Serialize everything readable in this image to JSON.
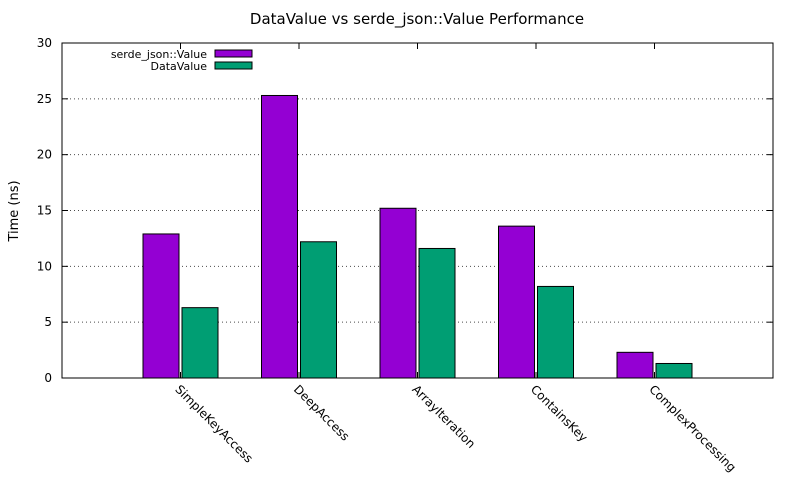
{
  "chart_data": {
    "type": "bar",
    "title": "DataValue vs serde_json::Value Performance",
    "xlabel": "",
    "ylabel": "Time (ns)",
    "ylim": [
      0,
      30
    ],
    "yticks": [
      0,
      5,
      10,
      15,
      20,
      25,
      30
    ],
    "grid": "horizontal, dotted",
    "legend_position": "top-left",
    "categories": [
      "SimpleKeyAccess",
      "DeepAccess",
      "ArrayIteration",
      "ContainsKey",
      "ComplexProcessing"
    ],
    "series": [
      {
        "name": "serde_json::Value",
        "color": "#9400d3",
        "values": [
          12.9,
          25.3,
          15.2,
          13.6,
          2.3
        ]
      },
      {
        "name": "DataValue",
        "color": "#009e73",
        "values": [
          6.3,
          12.2,
          11.6,
          8.2,
          1.3
        ]
      }
    ]
  }
}
